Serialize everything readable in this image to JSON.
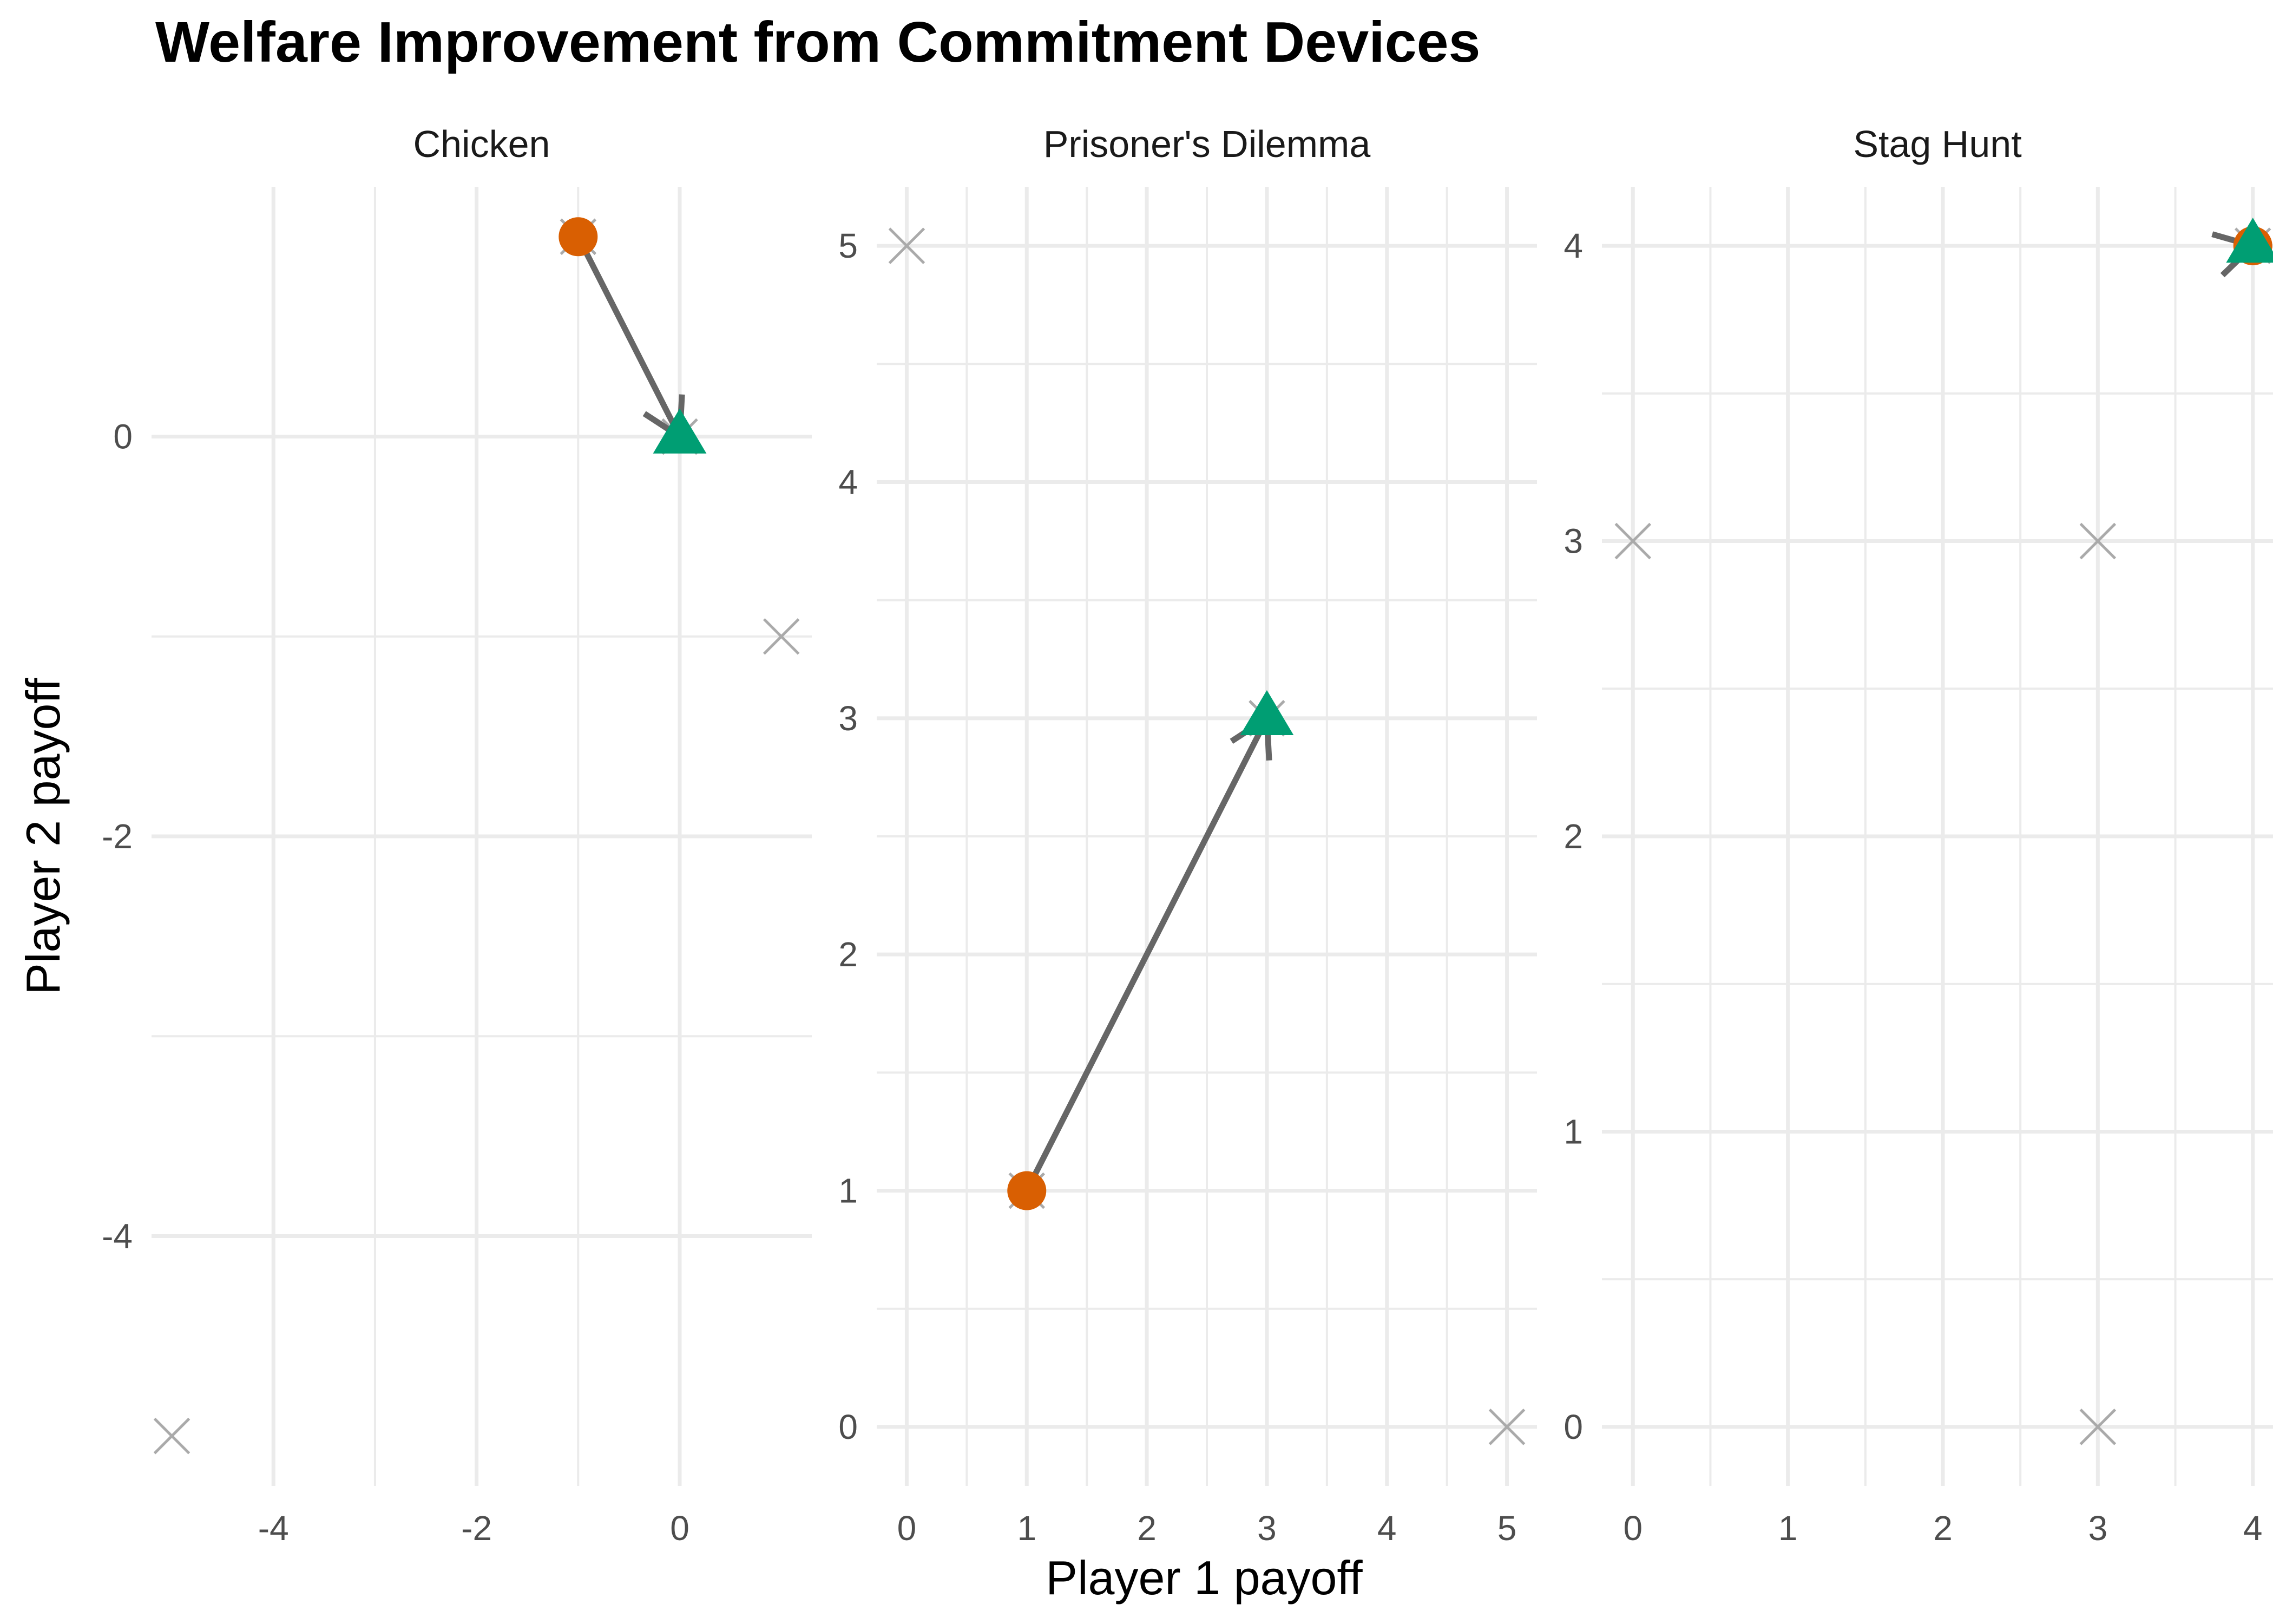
{
  "title": "Welfare Improvement from Commitment Devices",
  "colors": {
    "grid": "#ebebeb",
    "outcome": "#aaaaaa",
    "arrow": "#666666",
    "without_commitment": "#d95f02",
    "with_commitment": "#009e73",
    "text": "#4d4d4d"
  },
  "chart_data": {
    "type": "scatter",
    "x_label": "Player 1 payoff",
    "y_label": "Player 2 payoff",
    "grid": true,
    "legend": "none",
    "facets": [
      {
        "name": "Chicken",
        "xlim": [
          -5.2,
          1.3
        ],
        "ylim": [
          -5.25,
          1.25
        ],
        "x_ticks": [
          -4,
          -2,
          0
        ],
        "x_tick_labels": [
          "-4",
          "-2",
          "0"
        ],
        "y_ticks": [
          -4,
          -2,
          0
        ],
        "y_tick_labels": [
          "-4",
          "-2",
          "0"
        ],
        "outcomes": [
          {
            "x": -1,
            "y": 1
          },
          {
            "x": 0,
            "y": 0
          },
          {
            "x": 1,
            "y": -1
          },
          {
            "x": -5,
            "y": -5
          }
        ],
        "without_commitment": {
          "x": -1,
          "y": 1
        },
        "with_commitment": {
          "x": 0,
          "y": 0
        }
      },
      {
        "name": "Prisoner's Dilemma",
        "xlim": [
          -0.25,
          5.25
        ],
        "ylim": [
          -0.25,
          5.25
        ],
        "x_ticks": [
          0,
          1,
          2,
          3,
          4,
          5
        ],
        "x_tick_labels": [
          "0",
          "1",
          "2",
          "3",
          "4",
          "5"
        ],
        "y_ticks": [
          0,
          1,
          2,
          3,
          4,
          5
        ],
        "y_tick_labels": [
          "0",
          "1",
          "2",
          "3",
          "4",
          "5"
        ],
        "outcomes": [
          {
            "x": 3,
            "y": 3
          },
          {
            "x": 0,
            "y": 5
          },
          {
            "x": 5,
            "y": 0
          },
          {
            "x": 1,
            "y": 1
          }
        ],
        "without_commitment": {
          "x": 1,
          "y": 1
        },
        "with_commitment": {
          "x": 3,
          "y": 3
        }
      },
      {
        "name": "Stag Hunt",
        "xlim": [
          -0.2,
          4.2
        ],
        "ylim": [
          -0.2,
          4.2
        ],
        "x_ticks": [
          0,
          1,
          2,
          3,
          4
        ],
        "x_tick_labels": [
          "0",
          "1",
          "2",
          "3",
          "4"
        ],
        "y_ticks": [
          0,
          1,
          2,
          3,
          4
        ],
        "y_tick_labels": [
          "0",
          "1",
          "2",
          "3",
          "4"
        ],
        "outcomes": [
          {
            "x": 4,
            "y": 4
          },
          {
            "x": 0,
            "y": 3
          },
          {
            "x": 3,
            "y": 0
          },
          {
            "x": 3,
            "y": 3
          }
        ],
        "without_commitment": {
          "x": 4,
          "y": 4
        },
        "with_commitment": {
          "x": 4,
          "y": 4
        }
      }
    ]
  }
}
